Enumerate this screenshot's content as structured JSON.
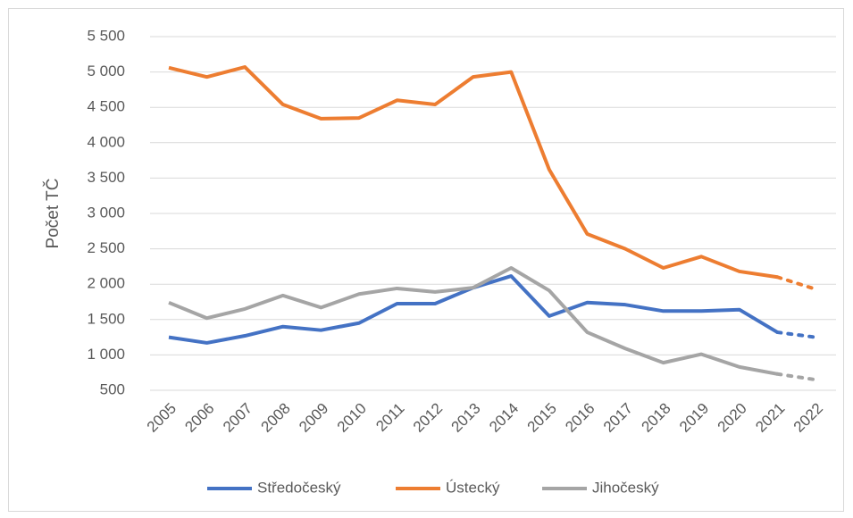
{
  "chart_data": {
    "type": "line",
    "y_label": "Počet TČ",
    "categories": [
      "2005",
      "2006",
      "2007",
      "2008",
      "2009",
      "2010",
      "2011",
      "2012",
      "2013",
      "2014",
      "2015",
      "2016",
      "2017",
      "2018",
      "2019",
      "2020",
      "2021",
      "2022"
    ],
    "series": [
      {
        "name": "Středočeský",
        "color": "#4472c4",
        "values": [
          1250,
          1170,
          1270,
          1400,
          1350,
          1450,
          1725,
          1725,
          1950,
          2115,
          1550,
          1740,
          1710,
          1620,
          1620,
          1640,
          1320,
          1250
        ]
      },
      {
        "name": "Ústecký",
        "color": "#ed7d31",
        "values": [
          5060,
          4930,
          5070,
          4540,
          4340,
          4350,
          4600,
          4540,
          4930,
          5000,
          3620,
          2710,
          2500,
          2230,
          2390,
          2180,
          2100,
          1930
        ]
      },
      {
        "name": "Jihočeský",
        "color": "#a5a5a5",
        "values": [
          1740,
          1520,
          1650,
          1840,
          1670,
          1860,
          1940,
          1890,
          1950,
          2230,
          1910,
          1320,
          1090,
          890,
          1010,
          830,
          730,
          650
        ]
      }
    ],
    "dotted_last_segment": true,
    "ylim": [
      500,
      5500
    ],
    "yticks": [
      500,
      {
        "value": 1000,
        "label": "1 000"
      },
      {
        "value": 1500,
        "label": "1 500"
      },
      {
        "value": 2000,
        "label": "2 000"
      },
      {
        "value": 2500,
        "label": "2 500"
      },
      {
        "value": 3000,
        "label": "3 000"
      },
      {
        "value": 3500,
        "label": "3 500"
      },
      {
        "value": 4000,
        "label": "4 000"
      },
      {
        "value": 4500,
        "label": "4 500"
      },
      {
        "value": 5000,
        "label": "5 000"
      },
      {
        "value": 5500,
        "label": "5 500"
      }
    ],
    "grid": true,
    "legend": "bottom"
  }
}
